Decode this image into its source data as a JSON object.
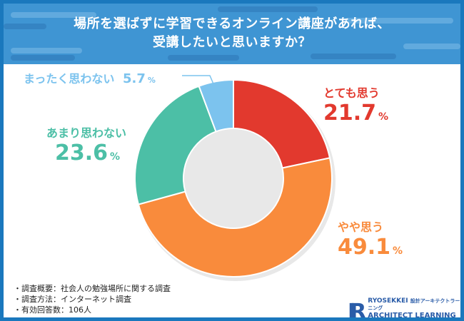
{
  "title": {
    "line1": "場所を選ばずに学習できるオンライン講座があれば、",
    "line2": "受講したいと思いますか？"
  },
  "colors": {
    "frame": "#1a78bd",
    "header": "#3f95d3"
  },
  "chart_data": {
    "type": "pie",
    "donut": true,
    "title": "場所を選ばずに学習できるオンライン講座があれば、受講したいと思いますか？",
    "unit": "%",
    "slices": [
      {
        "label": "とても思う",
        "value": 21.7,
        "color": "#e2392e"
      },
      {
        "label": "やや思う",
        "value": 49.1,
        "color": "#f98b3c"
      },
      {
        "label": "あまり思わない",
        "value": 23.6,
        "color": "#4cbfa6"
      },
      {
        "label": "まったく思わない",
        "value": 5.7,
        "color": "#7cc3ee"
      }
    ]
  },
  "notes": [
    "・調査概要：社会人の勉強場所に関する調査",
    "・調査方法：インターネット調査",
    "・有効回答数：106人"
  ],
  "logo": {
    "line1": "RYOSEKKEI",
    "line1_sub": "設計アーキテクトラーニング",
    "line2": "ARCHITECT LEARNING SCHOOL"
  }
}
